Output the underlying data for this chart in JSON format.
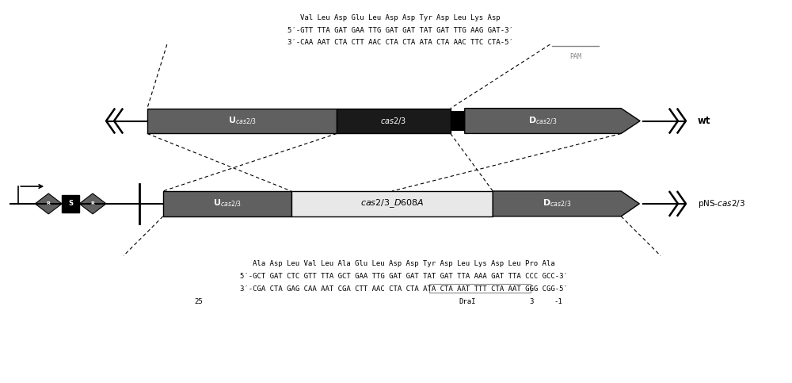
{
  "bg_color": "#ffffff",
  "top_amino": "Val Leu Asp Glu Leu Asp Asp Tyr Asp Leu Lys Asp",
  "top_seq5": "5′-GTT TTA GAT GAA TTG GAT GAT TAT GAT TTG AAG GAT-3′",
  "top_seq3": "3′-CAA AAT CTA CTT AAC CTA CTA ATA CTA AAC TTC CTA-5′",
  "pam_label": "PAM",
  "wt_label": "wt",
  "pns_label": "pNS-cas2/3",
  "bottom_amino": "Ala Asp Leu Val Leu Ala Glu Leu Asp Asp Tyr Asp Leu Lys Asp Leu Pro Ala",
  "bottom_seq5": "5′-GCT GAT CTC GTT TTA GCT GAA TTG GAT GAT TAT GAT TTA AAA GAT TTA CCC GCC-3′",
  "bottom_seq3": "3′-CGA CTA GAG CAA AAT CGA CTT AAC CTA CTA ATA CTA AAT TTT CTA AAT GGG CGG-5′",
  "num_25": "25",
  "draI_label": "DraI",
  "num_3": "3",
  "num_m1": "-1",
  "dark_gray": "#606060",
  "black": "#000000",
  "white": "#ffffff",
  "text_gray": "#888888",
  "light_bg": "#e8e8e8"
}
